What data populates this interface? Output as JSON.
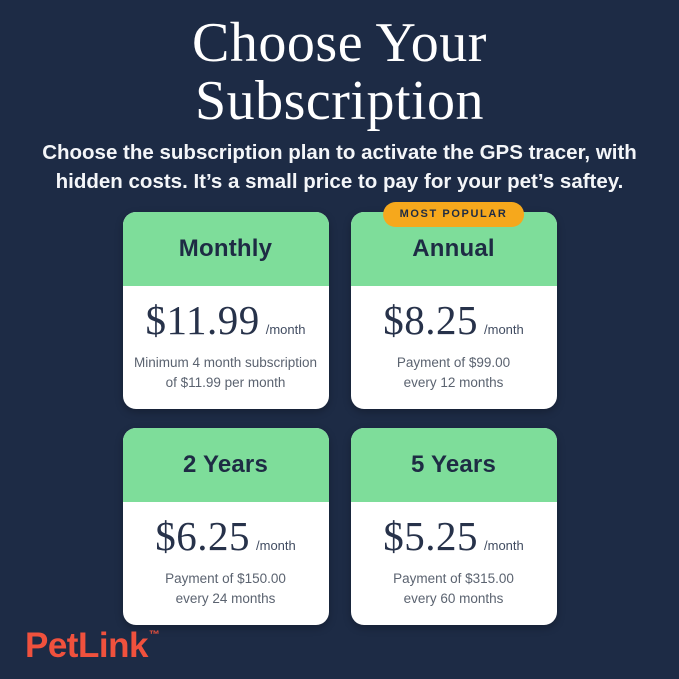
{
  "page": {
    "title_line1": "Choose Your",
    "title_line2": "Subscription",
    "subtitle_line1": "Choose the subscription plan to activate the GPS tracer, with",
    "subtitle_line2": "hidden costs. It’s a small price to pay for your pet’s saftey."
  },
  "badge": {
    "label": "MOST POPULAR"
  },
  "plans": [
    {
      "name": "Monthly",
      "price": "$11.99",
      "period": "/month",
      "detail_line1": "Minimum 4 month subscription",
      "detail_line2": "of $11.99 per month",
      "most_popular": false
    },
    {
      "name": "Annual",
      "price": "$8.25",
      "period": "/month",
      "detail_line1": "Payment of $99.00",
      "detail_line2": "every 12 months",
      "most_popular": true
    },
    {
      "name": "2 Years",
      "price": "$6.25",
      "period": "/month",
      "detail_line1": "Payment of $150.00",
      "detail_line2": "every 24 months",
      "most_popular": false
    },
    {
      "name": "5 Years",
      "price": "$5.25",
      "period": "/month",
      "detail_line1": "Payment of $315.00",
      "detail_line2": "every 60 months",
      "most_popular": false
    }
  ],
  "footer": {
    "logo_text": "PetLink",
    "trademark": "™"
  },
  "colors": {
    "background_navy": "#1D2B45",
    "card_header_green": "#7EDD9A",
    "card_body_white": "#FFFFFF",
    "badge_amber": "#F6A81C",
    "navy_text": "#1E2B44",
    "muted_text": "#5B6370",
    "logo_red": "#F0513D",
    "title_white": "#FFFFFF"
  }
}
